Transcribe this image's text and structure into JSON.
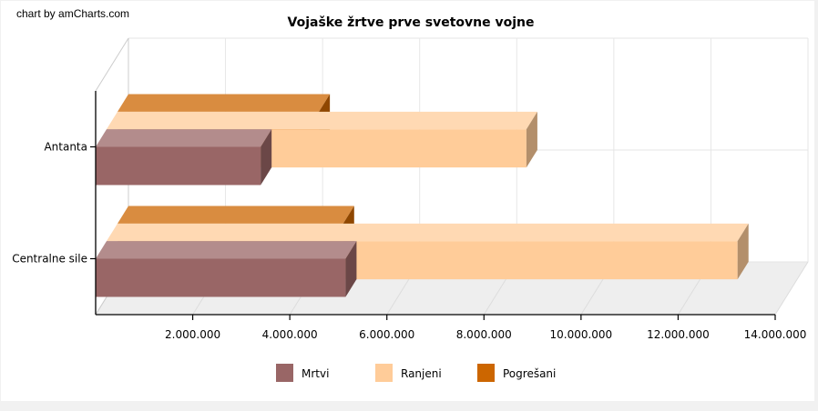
{
  "credit": "chart by amCharts.com",
  "colors": {
    "Mrtvi": "#996666",
    "Ranjeni": "#ffcc99",
    "Pogrešani": "#cc6600"
  },
  "chart_data": {
    "type": "bar",
    "orientation": "horizontal",
    "three_d": true,
    "title": "Vojaške žrtve prve svetovne vojne",
    "xlabel": "",
    "ylabel": "",
    "categories": [
      "Antanta",
      "Centralne sile"
    ],
    "series": [
      {
        "name": "Mrtvi",
        "values": [
          3400000,
          5150000
        ]
      },
      {
        "name": "Ranjeni",
        "values": [
          8650000,
          13000000
        ]
      },
      {
        "name": "Pogrešani",
        "values": [
          4150000,
          4650000
        ]
      }
    ],
    "xlim": [
      0,
      14000000
    ],
    "x_ticks": [
      "2.000.000",
      "4.000.000",
      "6.000.000",
      "8.000.000",
      "10.000.000",
      "12.000.000",
      "14.000.000"
    ],
    "grid": true,
    "legend_position": "bottom"
  }
}
